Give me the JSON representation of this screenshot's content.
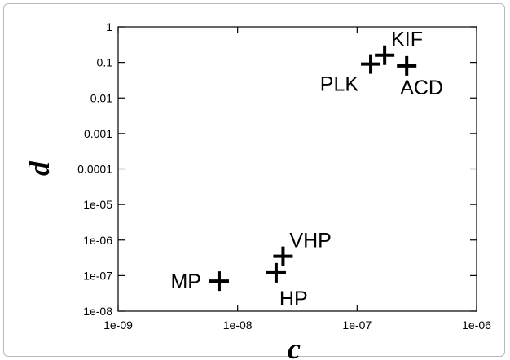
{
  "chart_data": {
    "type": "scatter",
    "title": "",
    "xlabel": "c",
    "ylabel": "d",
    "xscale": "log",
    "yscale": "log",
    "xlim": [
      1e-09,
      1e-06
    ],
    "ylim": [
      1e-08,
      1
    ],
    "grid": false,
    "marker": "plus",
    "x_ticks": [
      "1e-09",
      "1e-08",
      "1e-07",
      "1e-06"
    ],
    "y_ticks": [
      "1",
      "0.1",
      "0.01",
      "0.001",
      "0.0001",
      "1e-05",
      "1e-06",
      "1e-07",
      "1e-08"
    ],
    "points": [
      {
        "label": "MP",
        "x": 7e-09,
        "y": 7e-08,
        "label_side": "left"
      },
      {
        "label": "HP",
        "x": 2.1e-08,
        "y": 1.2e-07,
        "label_side": "below"
      },
      {
        "label": "VHP",
        "x": 2.4e-08,
        "y": 3.5e-07,
        "label_side": "above-right"
      },
      {
        "label": "PLK",
        "x": 1.3e-07,
        "y": 0.09,
        "label_side": "below-left"
      },
      {
        "label": "KIF",
        "x": 1.7e-07,
        "y": 0.16,
        "label_side": "above-right"
      },
      {
        "label": "ACD",
        "x": 2.6e-07,
        "y": 0.08,
        "label_side": "below-right"
      }
    ]
  }
}
